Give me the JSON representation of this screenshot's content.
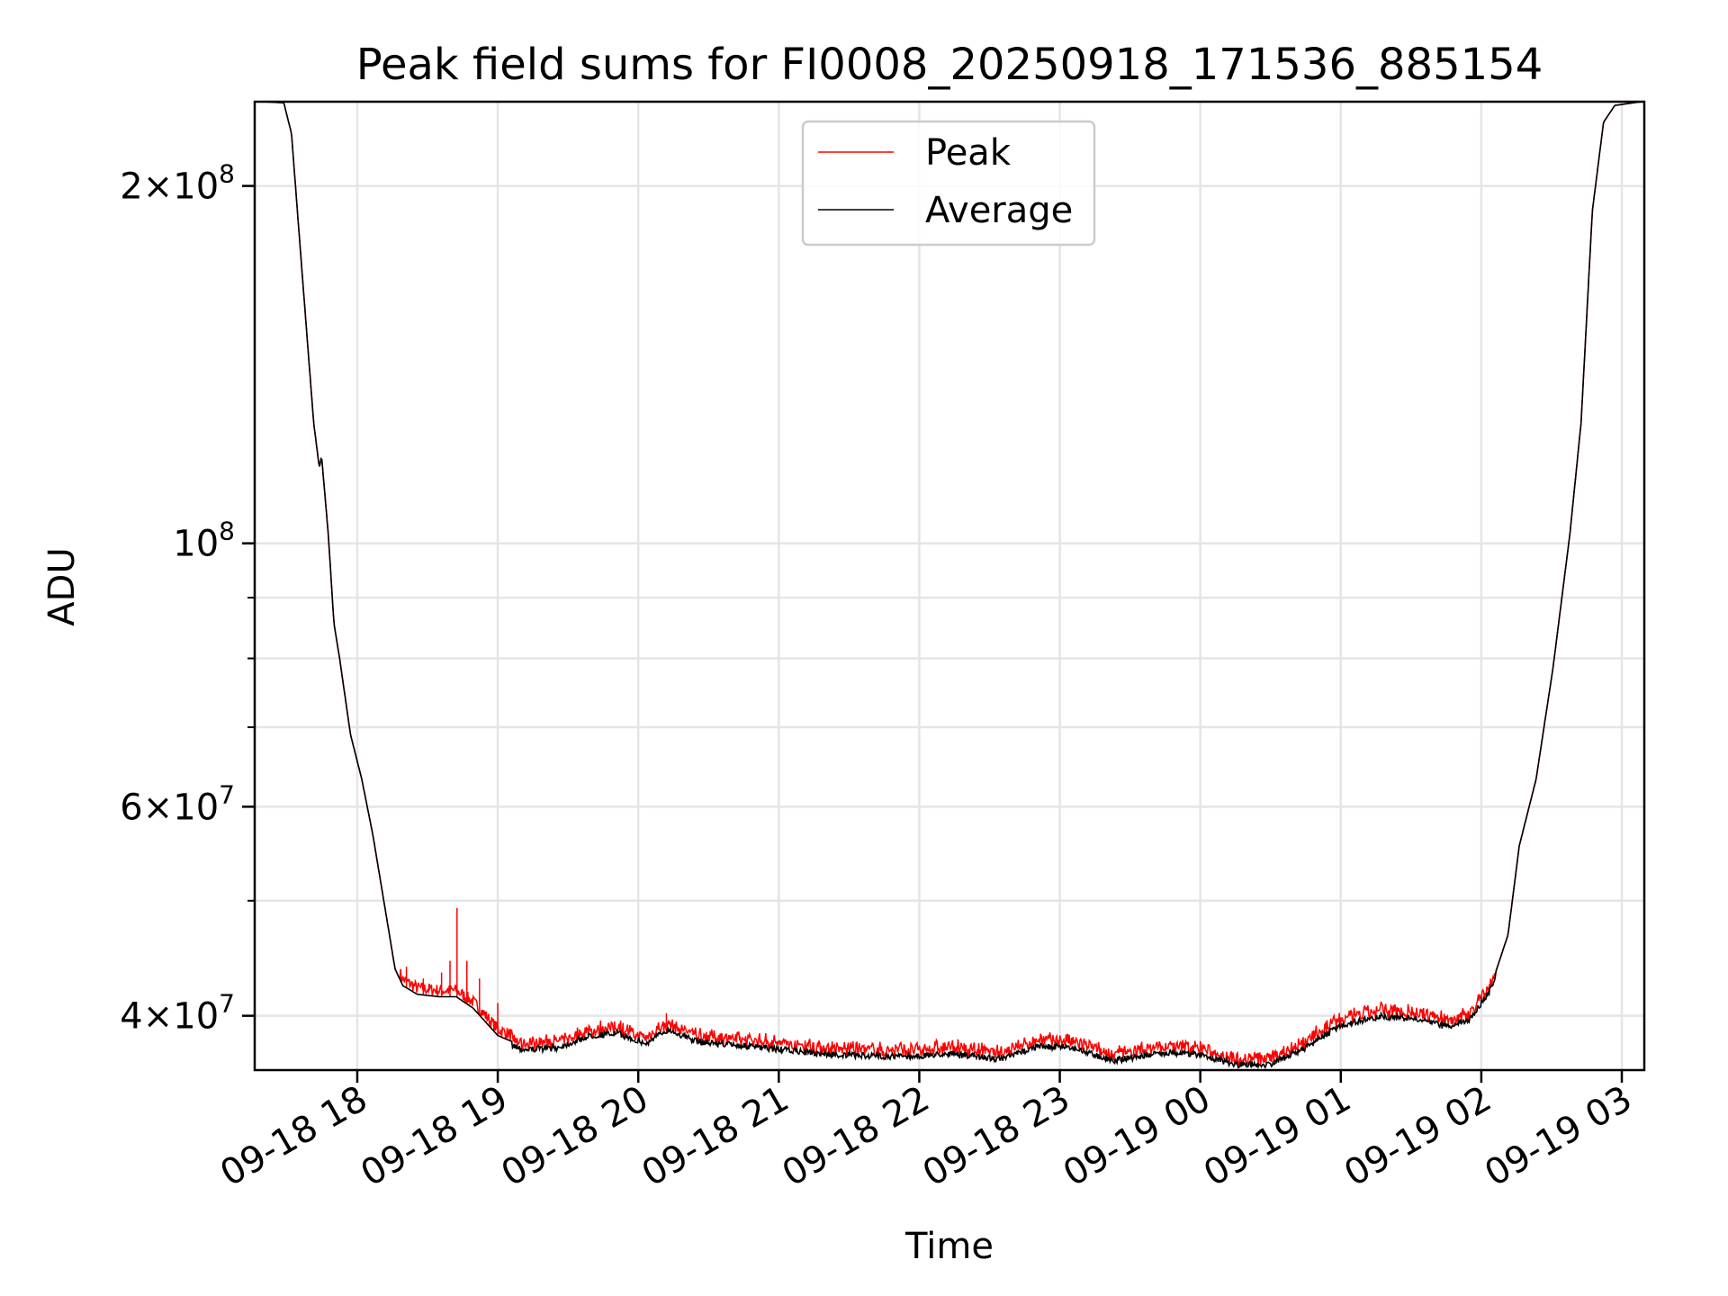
{
  "chart_data": {
    "type": "line",
    "title": "Peak field sums for FI0008_20250918_171536_885154",
    "xlabel": "Time",
    "ylabel": "ADU",
    "yscale": "log",
    "ylim": [
      36000000,
      235500000
    ],
    "xlim_hours_since_0918_0000": [
      17.27,
      27.16
    ],
    "grid": true,
    "legend_placement": "upper center",
    "x_ticks": [
      {
        "t": 18,
        "label": "09-18 18"
      },
      {
        "t": 19,
        "label": "09-18 19"
      },
      {
        "t": 20,
        "label": "09-18 20"
      },
      {
        "t": 21,
        "label": "09-18 21"
      },
      {
        "t": 22,
        "label": "09-18 22"
      },
      {
        "t": 23,
        "label": "09-18 23"
      },
      {
        "t": 24,
        "label": "09-19 00"
      },
      {
        "t": 25,
        "label": "09-19 01"
      },
      {
        "t": 26,
        "label": "09-19 02"
      },
      {
        "t": 27,
        "label": "09-19 03"
      }
    ],
    "y_ticks": [
      {
        "v": 40000000,
        "base": "4×10",
        "exp": "7"
      },
      {
        "v": 60000000,
        "base": "6×10",
        "exp": "7"
      },
      {
        "v": 100000000,
        "base": "10",
        "exp": "8"
      },
      {
        "v": 200000000,
        "base": "2×10",
        "exp": "8"
      }
    ],
    "y_minor_ticks": [
      50000000,
      70000000,
      80000000,
      90000000
    ],
    "series": [
      {
        "name": "Peak",
        "color": "#ff0000",
        "offset_factor": 1.02,
        "spikes": [
          [
            18.35,
            44000000
          ],
          [
            18.47,
            43000000
          ],
          [
            18.6,
            43500000
          ],
          [
            18.66,
            44500000
          ],
          [
            18.71,
            49300000
          ],
          [
            18.78,
            44500000
          ],
          [
            18.87,
            43000000
          ],
          [
            19.0,
            41000000
          ],
          [
            20.2,
            40200000
          ]
        ]
      },
      {
        "name": "Average",
        "color": "#000000"
      }
    ],
    "average_points": [
      [
        17.271,
        235700000
      ],
      [
        17.477,
        235000000
      ],
      [
        17.532,
        221400000
      ],
      [
        17.58,
        186300000
      ],
      [
        17.635,
        153300000
      ],
      [
        17.69,
        126300000
      ],
      [
        17.73,
        115800000
      ],
      [
        17.746,
        118400000
      ],
      [
        17.794,
        101700000
      ],
      [
        17.834,
        85600000
      ],
      [
        17.873,
        80200000
      ],
      [
        17.952,
        69000000
      ],
      [
        18.032,
        63300000
      ],
      [
        18.111,
        56800000
      ],
      [
        18.19,
        49900000
      ],
      [
        18.269,
        43800000
      ],
      [
        18.325,
        42400000
      ],
      [
        18.428,
        41700000
      ],
      [
        18.586,
        41500000
      ],
      [
        18.705,
        41500000
      ],
      [
        18.824,
        40600000
      ],
      [
        19.0,
        38500000
      ],
      [
        19.18,
        37700000
      ],
      [
        19.418,
        37800000
      ],
      [
        19.656,
        38700000
      ],
      [
        19.854,
        38900000
      ],
      [
        20.052,
        38100000
      ],
      [
        20.211,
        39200000
      ],
      [
        20.409,
        38300000
      ],
      [
        20.607,
        38100000
      ],
      [
        21.0,
        37700000
      ],
      [
        21.4,
        37300000
      ],
      [
        21.8,
        37200000
      ],
      [
        22.0,
        37200000
      ],
      [
        22.19,
        37400000
      ],
      [
        22.59,
        37000000
      ],
      [
        22.83,
        37900000
      ],
      [
        23.06,
        37900000
      ],
      [
        23.38,
        36900000
      ],
      [
        23.78,
        37500000
      ],
      [
        24.01,
        37300000
      ],
      [
        24.25,
        36600000
      ],
      [
        24.49,
        36600000
      ],
      [
        24.73,
        37700000
      ],
      [
        25.0,
        39500000
      ],
      [
        25.28,
        40200000
      ],
      [
        25.52,
        40000000
      ],
      [
        25.76,
        39400000
      ],
      [
        25.92,
        40000000
      ],
      [
        26.07,
        42400000
      ],
      [
        26.19,
        46800000
      ],
      [
        26.27,
        55600000
      ],
      [
        26.39,
        63300000
      ],
      [
        26.51,
        78500000
      ],
      [
        26.63,
        101700000
      ],
      [
        26.71,
        126300000
      ],
      [
        26.79,
        190400000
      ],
      [
        26.87,
        226300000
      ],
      [
        26.95,
        233800000
      ],
      [
        27.16,
        235700000
      ]
    ]
  }
}
